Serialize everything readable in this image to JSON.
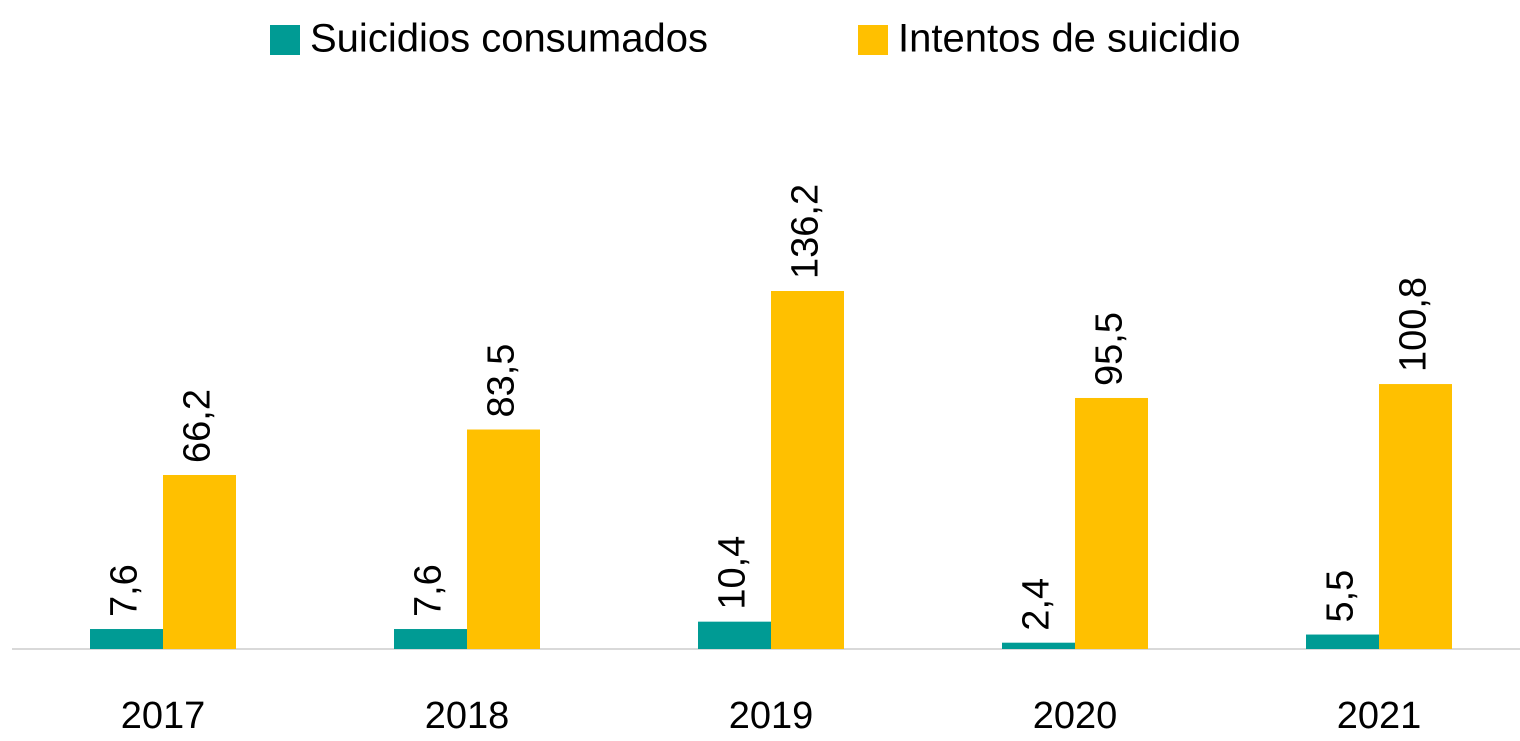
{
  "chart_data": {
    "type": "bar",
    "categories": [
      "2017",
      "2018",
      "2019",
      "2020",
      "2021"
    ],
    "series": [
      {
        "name": "Suicidios consumados",
        "color": "#009b94",
        "values": [
          7.6,
          7.6,
          10.4,
          2.4,
          5.5
        ],
        "value_labels": [
          "7,6",
          "7,6",
          "10,4",
          "2,4",
          "5,5"
        ]
      },
      {
        "name": "Intentos de suicidio",
        "color": "#ffc000",
        "values": [
          66.2,
          83.5,
          136.2,
          95.5,
          100.8
        ],
        "value_labels": [
          "66,2",
          "83,5",
          "136,2",
          "95,5",
          "100,8"
        ]
      }
    ],
    "legend": "top"
  }
}
